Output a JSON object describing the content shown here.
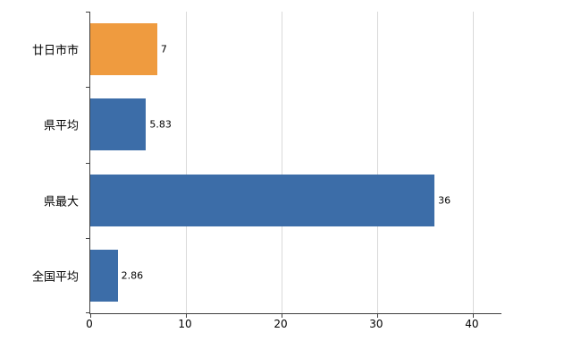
{
  "chart_data": {
    "type": "bar",
    "orientation": "horizontal",
    "title": "",
    "xlabel": "",
    "ylabel": "",
    "categories": [
      "廿日市市",
      "県平均",
      "県最大",
      "全国平均"
    ],
    "values": [
      7,
      5.83,
      36,
      2.86
    ],
    "value_labels": [
      "7",
      "5.83",
      "36",
      "2.86"
    ],
    "bar_colors": [
      "#ef9b3f",
      "#3c6da8",
      "#3c6da8",
      "#3c6da8"
    ],
    "x_ticks": [
      0,
      10,
      20,
      30,
      40
    ],
    "x_tick_labels": [
      "0",
      "10",
      "20",
      "30",
      "40"
    ],
    "xlim": [
      0,
      43
    ],
    "grid": true,
    "legend": "none",
    "colors": {
      "highlight_bar": "#ef9b3f",
      "default_bar": "#3c6da8",
      "gridline": "#d9d9d9",
      "axis": "#404040",
      "background": "#ffffff"
    }
  }
}
